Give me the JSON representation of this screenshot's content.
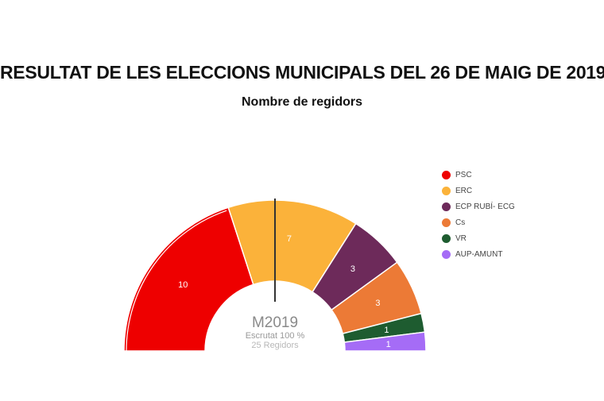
{
  "chart_data": {
    "type": "hemicycle",
    "title": "RESULTAT DE LES ELECCIONS MUNICIPALS DEL 26 DE MAIG DE 2019",
    "subtitle": "Nombre de regidors",
    "center": {
      "label": "M2019",
      "scrutiny": "Escrutat 100 %",
      "total": "25 Regidors"
    },
    "total_seats": 25,
    "majority_line": true,
    "series": [
      {
        "name": "PSC",
        "value": 10,
        "color": "#ee0000",
        "label": "10"
      },
      {
        "name": "ERC",
        "value": 7,
        "color": "#fbb23a",
        "label": "7"
      },
      {
        "name": "ECP RUBÍ- ECG",
        "value": 3,
        "color": "#6d2a5a",
        "label": "3"
      },
      {
        "name": "Cs",
        "value": 3,
        "color": "#ec7a36",
        "label": "3"
      },
      {
        "name": "VR",
        "value": 1,
        "color": "#1e5c30",
        "label": "1"
      },
      {
        "name": "AUP-AMUNT",
        "value": 1,
        "color": "#a56cf6",
        "label": "1"
      }
    ]
  }
}
